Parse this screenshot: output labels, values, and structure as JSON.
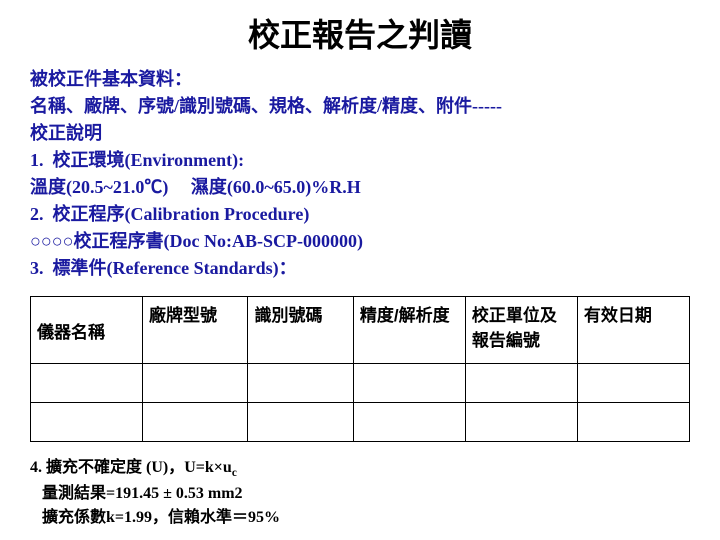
{
  "title": "校正報告之判讀",
  "info_lines": [
    "被校正件基本資料：",
    "名稱、廠牌、序號/識別號碼、規格、解析度/精度、附件-----",
    "校正說明",
    "1.  校正環境(Environment):",
    "溫度(20.5~21.0℃)     濕度(60.0~65.0)%R.H",
    "2.  校正程序(Calibration Procedure)",
    "○○○○校正程序書(Doc No:AB-SCP-000000)",
    "3.  標準件(Reference Standards)："
  ],
  "table": {
    "columns": [
      "儀器名稱",
      "廠牌型號",
      "識別號碼",
      "精度/解析度",
      "校正單位及報告編號",
      "有效日期"
    ],
    "col_widths": [
      "17%",
      "16%",
      "16%",
      "17%",
      "17%",
      "17%"
    ],
    "empty_row_count": 2
  },
  "footer_lines": [
    "4. 擴充不確定度 (U)，U=k×u_c",
    "   量測結果=191.45 ± 0.53 mm2",
    "   擴充係數k=1.99，信賴水準＝95%"
  ],
  "colors": {
    "info_text": "#1a1aa0",
    "title_text": "#000000",
    "table_border": "#000000",
    "footer_text": "#000000",
    "background": "#ffffff"
  }
}
